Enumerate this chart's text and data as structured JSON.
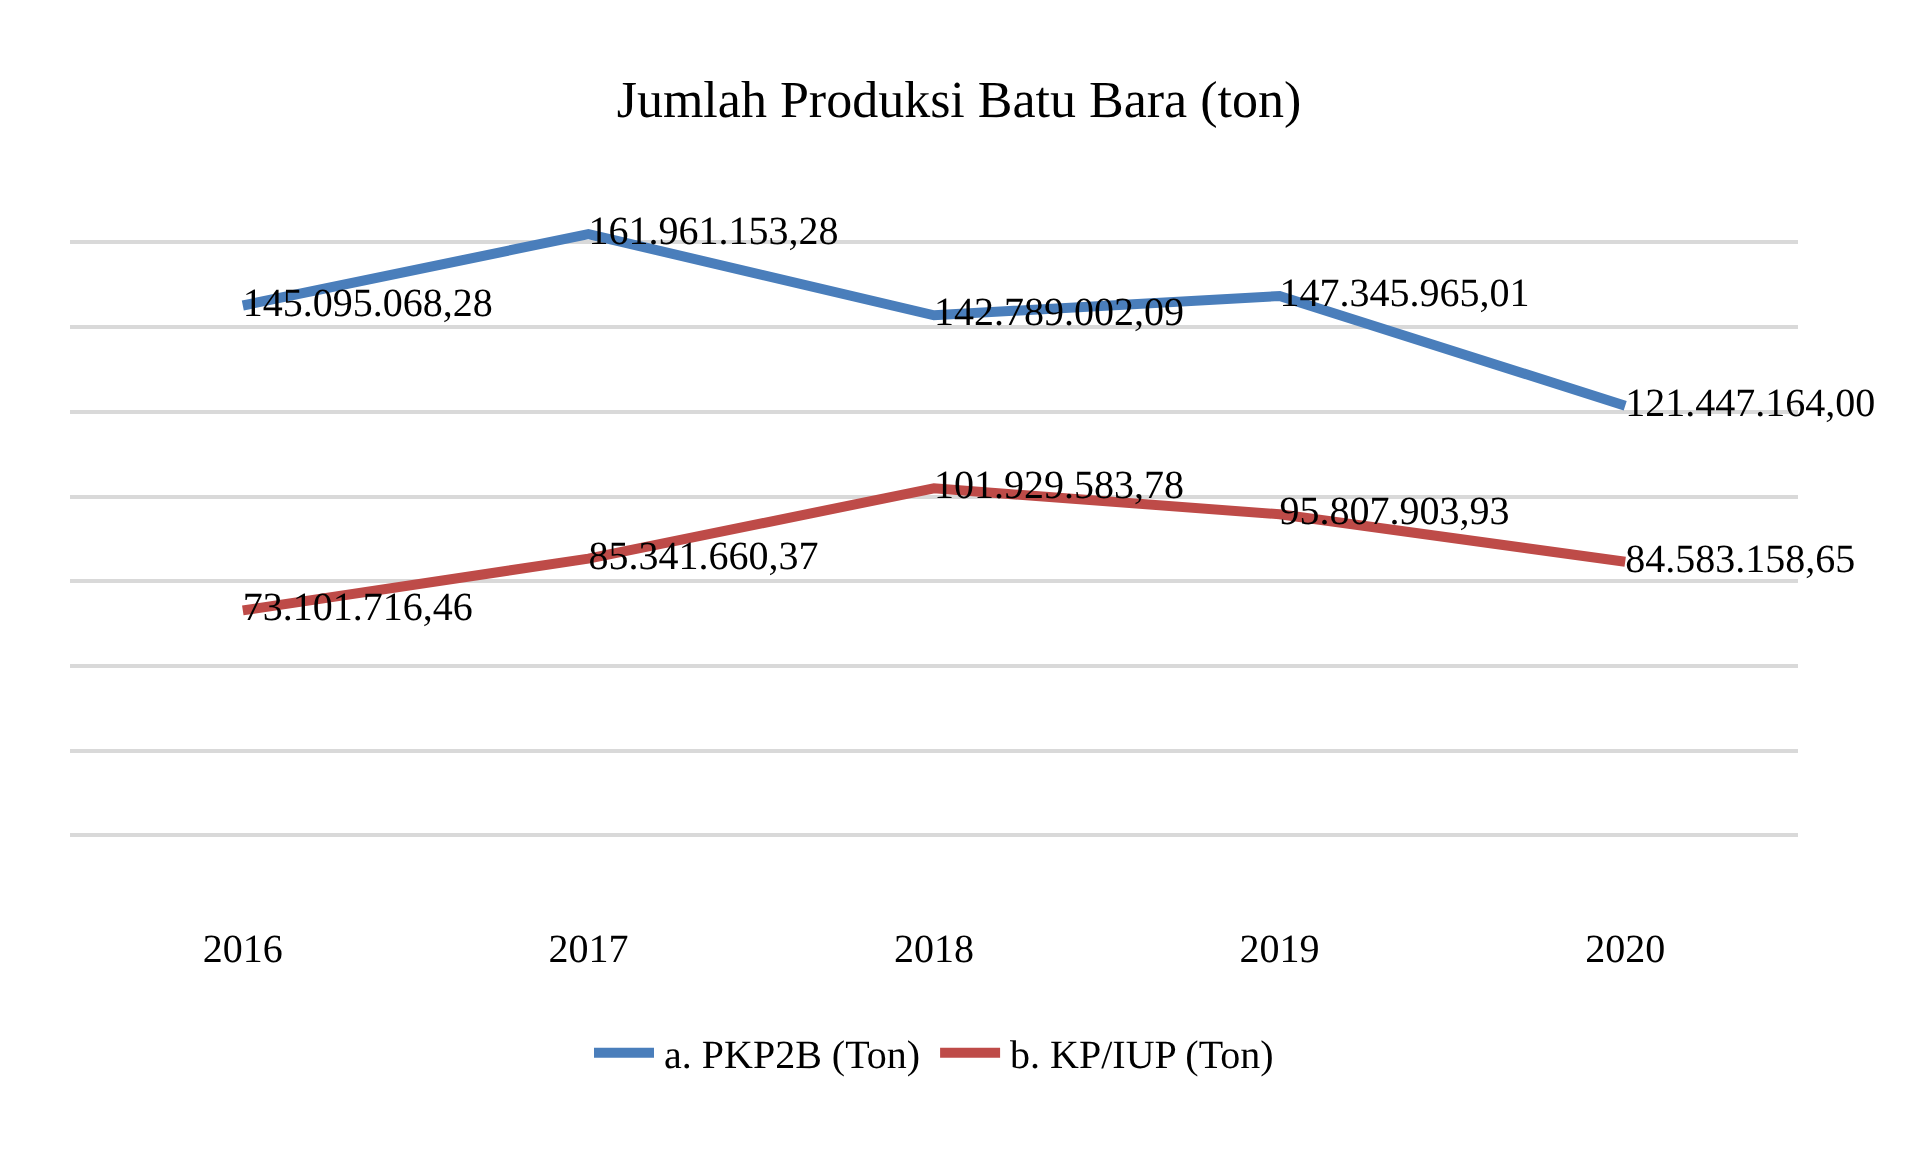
{
  "chart_data": {
    "type": "line",
    "title": "Jumlah Produksi Batu Bara (ton)",
    "categories": [
      "2016",
      "2017",
      "2018",
      "2019",
      "2020"
    ],
    "series": [
      {
        "name": "a. PKP2B (Ton)",
        "color": "#4a7ebb",
        "values": [
          145095068.28,
          161961153.28,
          142789002.09,
          147345965.01,
          121447164.0
        ],
        "value_labels": [
          "145.095.068,28",
          "161.961.153,28",
          "142.789.002,09",
          "147.345.965,01",
          "121.447.164,00"
        ]
      },
      {
        "name": "b. KP/IUP (Ton)",
        "color": "#be4b48",
        "values": [
          73101716.46,
          85341660.37,
          101929583.78,
          95807903.93,
          84583158.65
        ],
        "value_labels": [
          "73.101.716,46",
          "85.341.660,37",
          "101.929.583,78",
          "95.807.903,93",
          "84.583.158,65"
        ]
      }
    ],
    "tick_labels": "x",
    "grid": "y",
    "legend": "bottom",
    "marker": "none",
    "line_style": "solid"
  }
}
